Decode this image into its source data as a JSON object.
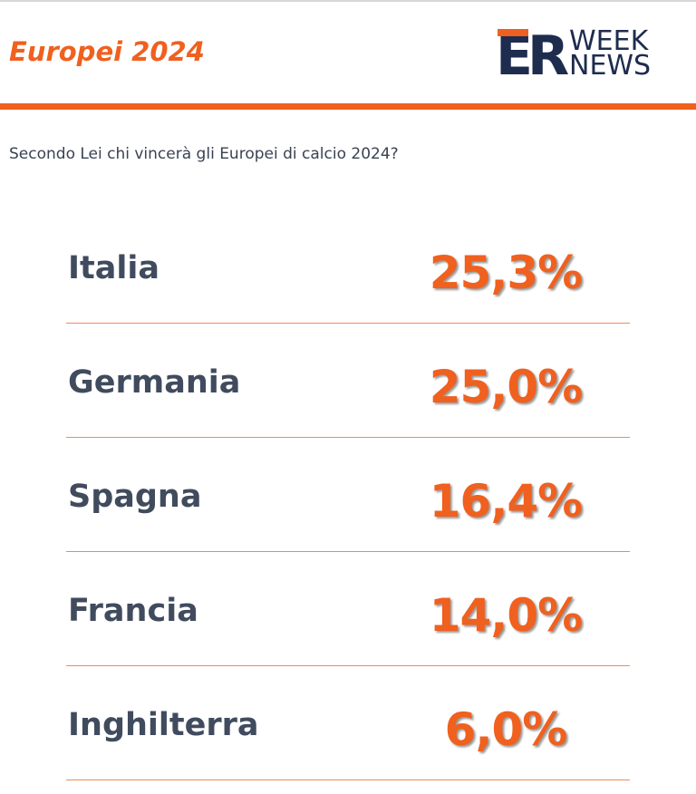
{
  "header": {
    "title": "Europei 2024",
    "logo": {
      "mark": "ER",
      "line1": "WEEK",
      "line2": "NEWS"
    }
  },
  "question": "Secondo Lei chi vincerà gli Europei di calcio 2024?",
  "rows": [
    {
      "label": "Italia",
      "value": "25,3%"
    },
    {
      "label": "Germania",
      "value": "25,0%"
    },
    {
      "label": "Spagna",
      "value": "16,4%"
    },
    {
      "label": "Francia",
      "value": "14,0%"
    },
    {
      "label": "Inghilterra",
      "value": "6,0%"
    }
  ]
}
